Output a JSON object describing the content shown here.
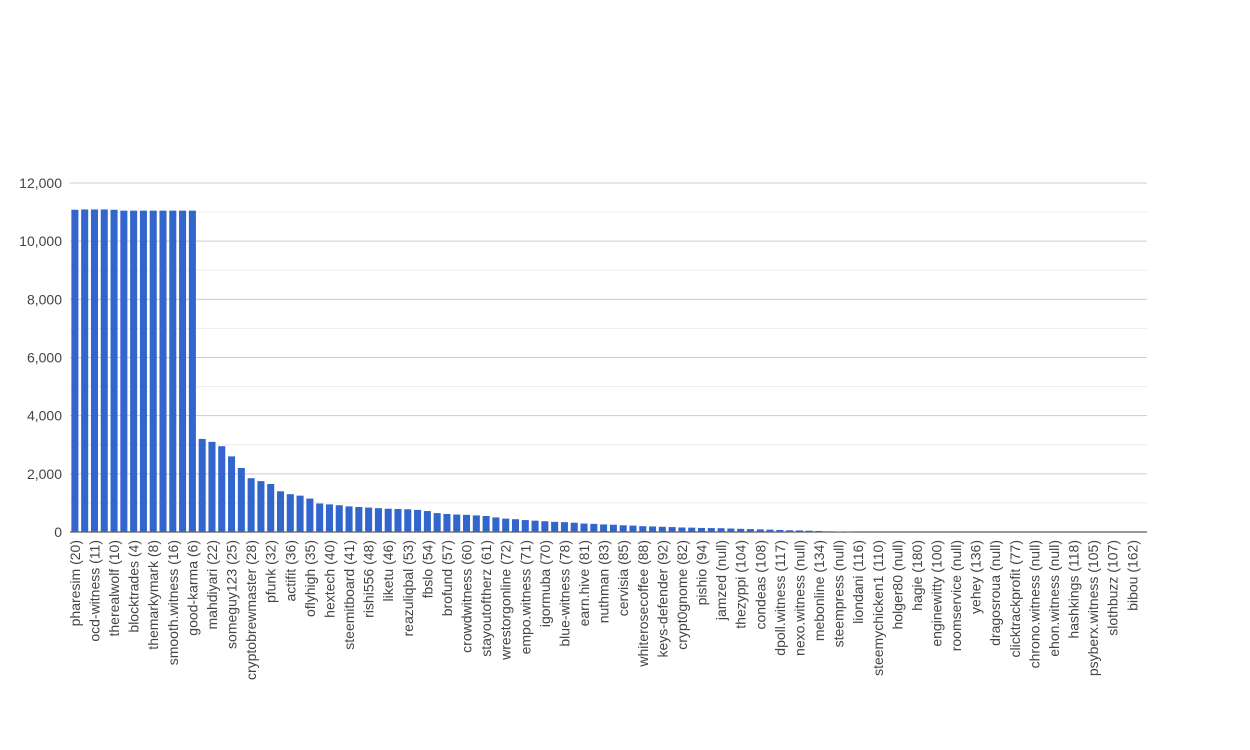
{
  "chart_data": {
    "type": "bar",
    "color": "#3366cc",
    "categories": [
      "pharesim (20)",
      null,
      "ocd-witness (11)",
      null,
      "therealwolf (10)",
      null,
      "blocktrades (4)",
      null,
      "themarkymark (8)",
      null,
      "smooth.witness (16)",
      null,
      "good-karma (6)",
      null,
      "mahdiyari (22)",
      null,
      "someguy123 (25)",
      null,
      "cryptobrewmaster (28)",
      null,
      "pfunk (32)",
      null,
      "actifit (36)",
      null,
      "oflyhigh (35)",
      null,
      "hextech (40)",
      null,
      "steemitboard (41)",
      null,
      "rishi556 (48)",
      null,
      "liketu (46)",
      null,
      "reazuliqbal (53)",
      null,
      "fbslo (54)",
      null,
      "brofund (57)",
      null,
      "crowdwitness (60)",
      null,
      "stayoutoftherz (61)",
      null,
      "wrestorgonline (72)",
      null,
      "empo.witness (71)",
      null,
      "igormuba (70)",
      null,
      "blue-witness (78)",
      null,
      "earn.hive (81)",
      null,
      "nuthman (83)",
      null,
      "cervisia (85)",
      null,
      "whiterosecoffee (88)",
      null,
      "keys-defender (92)",
      null,
      "crypt0gnome (82)",
      null,
      "pishio (94)",
      null,
      "jamzed (null)",
      null,
      "thezyppi (104)",
      null,
      "condeas (108)",
      null,
      "dpoll.witness (117)",
      null,
      "nexo.witness (null)",
      null,
      "mebonline (134)",
      null,
      "steempress (null)",
      null,
      "liondani (116)",
      null,
      "steemychicken1 (110)",
      null,
      "holger80 (null)",
      null,
      "hagie (180)",
      null,
      "enginewitty (100)",
      null,
      "roomservice (null)",
      null,
      "yehey (136)",
      null,
      "dragosroua (null)",
      null,
      "clicktrackprofit (77)",
      null,
      "chrono.witness (null)",
      null,
      "ehon.witness (null)",
      null,
      "hashkings (118)",
      null,
      "psyberx.witness (105)",
      null,
      "slothbuzz (107)",
      null,
      "bibou (162)",
      null
    ],
    "values": [
      11080,
      11090,
      11090,
      11090,
      11080,
      11050,
      11050,
      11050,
      11050,
      11050,
      11050,
      11050,
      11050,
      3200,
      3100,
      2950,
      2600,
      2200,
      1850,
      1750,
      1650,
      1400,
      1300,
      1250,
      1150,
      980,
      950,
      920,
      880,
      860,
      840,
      820,
      800,
      790,
      780,
      760,
      720,
      650,
      620,
      600,
      590,
      570,
      550,
      500,
      460,
      440,
      410,
      390,
      370,
      350,
      340,
      320,
      290,
      280,
      260,
      250,
      230,
      220,
      200,
      190,
      180,
      170,
      155,
      150,
      140,
      135,
      130,
      120,
      110,
      100,
      90,
      80,
      70,
      60,
      55,
      45,
      35,
      25,
      15,
      10,
      0,
      0,
      0,
      0,
      0,
      0,
      0,
      0,
      0,
      0,
      0,
      0,
      0,
      0,
      0,
      0,
      0,
      0,
      0,
      0,
      0,
      0,
      0,
      0,
      0,
      0,
      0,
      0,
      0,
      0
    ],
    "ylim": [
      0,
      12000
    ],
    "yticks": [
      0,
      {
        "value": 2000,
        "label": "2,000"
      },
      {
        "value": 4000,
        "label": "4,000"
      },
      {
        "value": 6000,
        "label": "6,000"
      },
      {
        "value": 8000,
        "label": "8,000"
      },
      {
        "value": 10000,
        "label": "10,000"
      },
      {
        "value": 12000,
        "label": "12,000"
      }
    ],
    "minor_yticks": [
      1000,
      3000,
      5000,
      7000,
      9000,
      11000
    ],
    "grid": true
  }
}
